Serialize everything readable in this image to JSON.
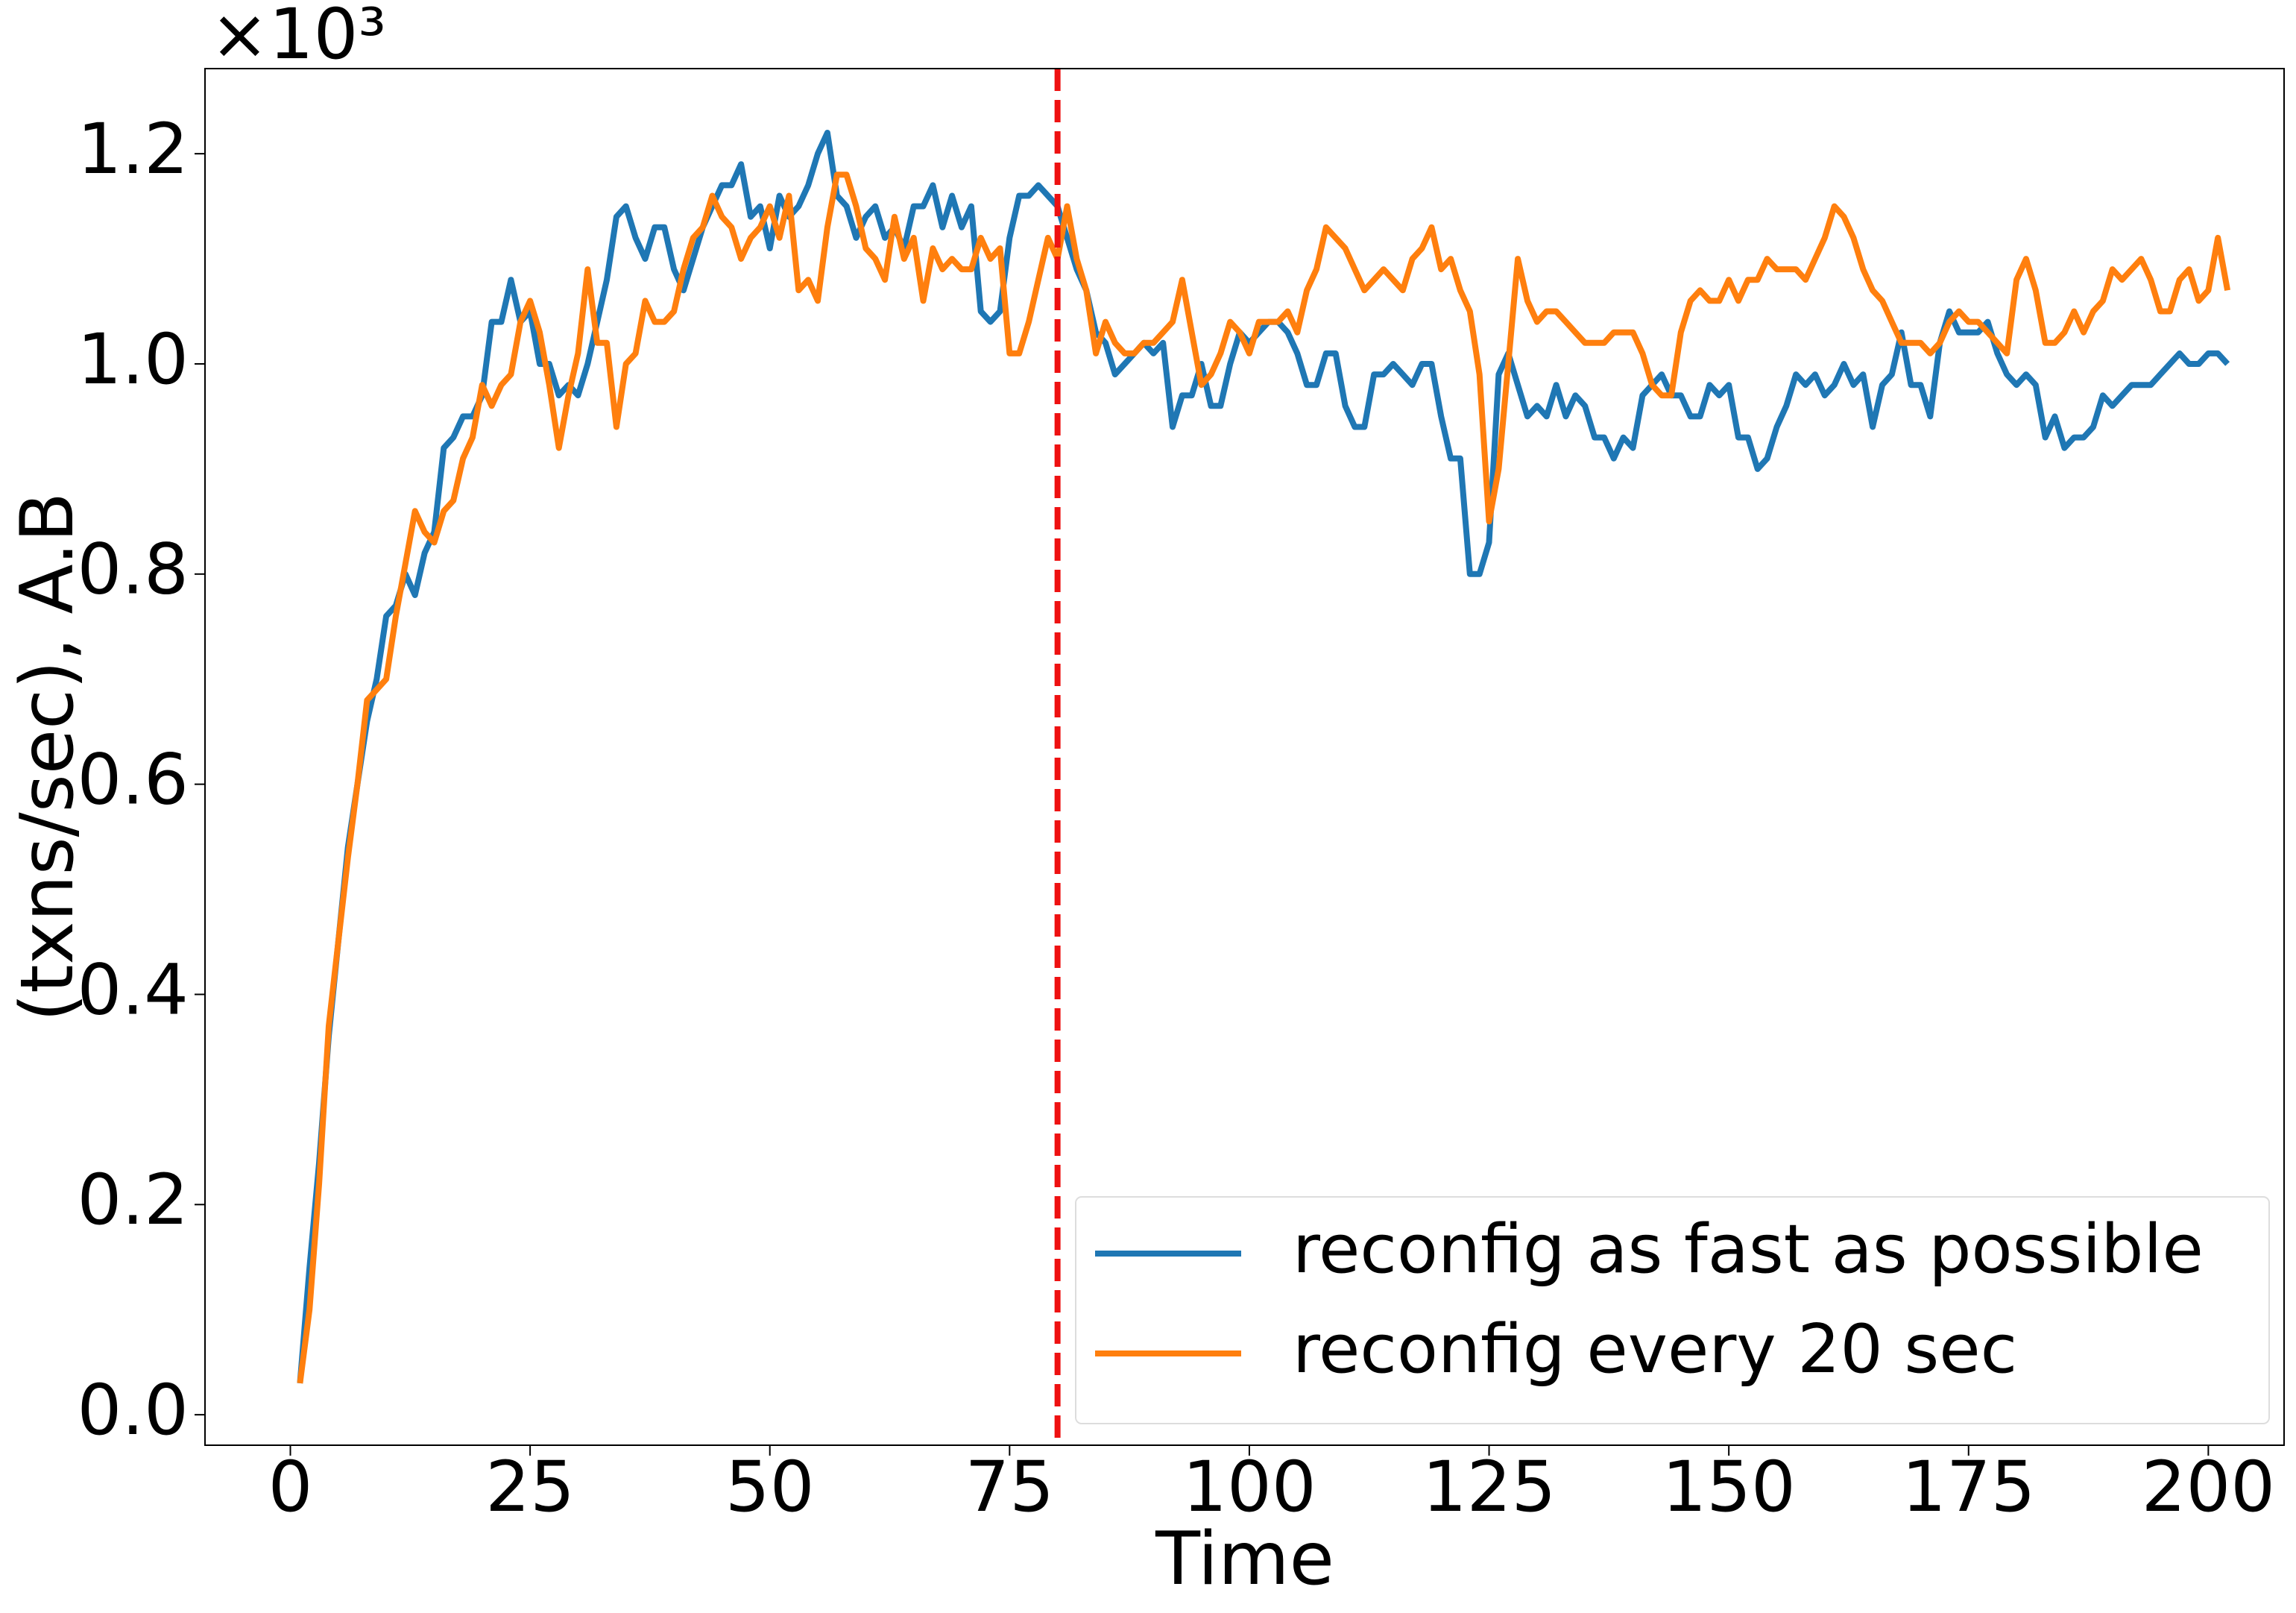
{
  "chart_data": {
    "type": "line",
    "x_label": "Time",
    "y_label": "(txns/sec), A.B",
    "y_offset_text": "×10³",
    "x": [
      1,
      2,
      3,
      4,
      5,
      6,
      7,
      8,
      9,
      10,
      11,
      12,
      13,
      14,
      15,
      16,
      17,
      18,
      19,
      20,
      21,
      22,
      23,
      24,
      25,
      26,
      27,
      28,
      29,
      30,
      31,
      32,
      33,
      34,
      35,
      36,
      37,
      38,
      39,
      40,
      41,
      42,
      43,
      44,
      45,
      46,
      47,
      48,
      49,
      50,
      51,
      52,
      53,
      54,
      55,
      56,
      57,
      58,
      59,
      60,
      61,
      62,
      63,
      64,
      65,
      66,
      67,
      68,
      69,
      70,
      71,
      72,
      73,
      74,
      75,
      76,
      77,
      78,
      79,
      80,
      81,
      82,
      83,
      84,
      85,
      86,
      87,
      88,
      89,
      90,
      91,
      92,
      93,
      94,
      95,
      96,
      97,
      98,
      99,
      100,
      101,
      102,
      103,
      104,
      105,
      106,
      107,
      108,
      109,
      110,
      111,
      112,
      113,
      114,
      115,
      116,
      117,
      118,
      119,
      120,
      121,
      122,
      123,
      124,
      125,
      126,
      127,
      128,
      129,
      130,
      131,
      132,
      133,
      134,
      135,
      136,
      137,
      138,
      139,
      140,
      141,
      142,
      143,
      144,
      145,
      146,
      147,
      148,
      149,
      150,
      151,
      152,
      153,
      154,
      155,
      156,
      157,
      158,
      159,
      160,
      161,
      162,
      163,
      164,
      165,
      166,
      167,
      168,
      169,
      170,
      171,
      172,
      173,
      174,
      175,
      176,
      177,
      178,
      179,
      180,
      181,
      182,
      183,
      184,
      185,
      186,
      187,
      188,
      189,
      190,
      191,
      192,
      193,
      194,
      195,
      196,
      197,
      198,
      199,
      200,
      201,
      202
    ],
    "series": [
      {
        "name": "reconfig as fast as possible",
        "color": "#1f77b4",
        "values": [
          0.03,
          0.14,
          0.24,
          0.36,
          0.45,
          0.54,
          0.6,
          0.66,
          0.7,
          0.76,
          0.77,
          0.8,
          0.78,
          0.82,
          0.84,
          0.92,
          0.93,
          0.95,
          0.95,
          0.97,
          1.04,
          1.04,
          1.08,
          1.04,
          1.05,
          1.0,
          1.0,
          0.97,
          0.98,
          0.97,
          1.0,
          1.04,
          1.08,
          1.14,
          1.15,
          1.12,
          1.1,
          1.13,
          1.13,
          1.09,
          1.07,
          1.1,
          1.13,
          1.15,
          1.17,
          1.17,
          1.19,
          1.14,
          1.15,
          1.11,
          1.16,
          1.14,
          1.15,
          1.17,
          1.2,
          1.22,
          1.16,
          1.15,
          1.12,
          1.14,
          1.15,
          1.12,
          1.13,
          1.11,
          1.15,
          1.15,
          1.17,
          1.13,
          1.16,
          1.13,
          1.15,
          1.05,
          1.04,
          1.05,
          1.12,
          1.16,
          1.16,
          1.17,
          1.16,
          1.15,
          1.12,
          1.09,
          1.07,
          1.03,
          1.02,
          0.99,
          1.0,
          1.01,
          1.02,
          1.01,
          1.02,
          0.94,
          0.97,
          0.97,
          1.0,
          0.96,
          0.96,
          1.0,
          1.03,
          1.02,
          1.03,
          1.04,
          1.04,
          1.03,
          1.01,
          0.98,
          0.98,
          1.01,
          1.01,
          0.96,
          0.94,
          0.94,
          0.99,
          0.99,
          1.0,
          0.99,
          0.98,
          1.0,
          1.0,
          0.95,
          0.91,
          0.91,
          0.8,
          0.8,
          0.83,
          0.99,
          1.01,
          0.98,
          0.95,
          0.96,
          0.95,
          0.98,
          0.95,
          0.97,
          0.96,
          0.93,
          0.93,
          0.91,
          0.93,
          0.92,
          0.97,
          0.98,
          0.99,
          0.97,
          0.97,
          0.95,
          0.95,
          0.98,
          0.97,
          0.98,
          0.93,
          0.93,
          0.9,
          0.91,
          0.94,
          0.96,
          0.99,
          0.98,
          0.99,
          0.97,
          0.98,
          1.0,
          0.98,
          0.99,
          0.94,
          0.98,
          0.99,
          1.03,
          0.98,
          0.98,
          0.95,
          1.02,
          1.05,
          1.03,
          1.03,
          1.03,
          1.04,
          1.01,
          0.99,
          0.98,
          0.99,
          0.98,
          0.93,
          0.95,
          0.92,
          0.93,
          0.93,
          0.94,
          0.97,
          0.96,
          0.97,
          0.98,
          0.98,
          0.98,
          0.99,
          1.0,
          1.01,
          1.0,
          1.0,
          1.01,
          1.01,
          1.0
        ]
      },
      {
        "name": "reconfig every 20 sec",
        "color": "#ff7f0e",
        "values": [
          0.03,
          0.1,
          0.22,
          0.37,
          0.45,
          0.53,
          0.6,
          0.68,
          0.69,
          0.7,
          0.76,
          0.81,
          0.86,
          0.84,
          0.83,
          0.86,
          0.87,
          0.91,
          0.93,
          0.98,
          0.96,
          0.98,
          0.99,
          1.04,
          1.06,
          1.03,
          0.98,
          0.92,
          0.97,
          1.01,
          1.09,
          1.02,
          1.02,
          0.94,
          1.0,
          1.01,
          1.06,
          1.04,
          1.04,
          1.05,
          1.09,
          1.12,
          1.13,
          1.16,
          1.14,
          1.13,
          1.1,
          1.12,
          1.13,
          1.15,
          1.12,
          1.16,
          1.07,
          1.08,
          1.06,
          1.13,
          1.18,
          1.18,
          1.15,
          1.11,
          1.1,
          1.08,
          1.14,
          1.1,
          1.12,
          1.06,
          1.11,
          1.09,
          1.1,
          1.09,
          1.09,
          1.12,
          1.1,
          1.11,
          1.01,
          1.01,
          1.04,
          1.08,
          1.12,
          1.1,
          1.15,
          1.1,
          1.07,
          1.01,
          1.04,
          1.02,
          1.01,
          1.01,
          1.02,
          1.02,
          1.03,
          1.04,
          1.08,
          1.03,
          0.98,
          0.99,
          1.01,
          1.04,
          1.03,
          1.01,
          1.04,
          1.04,
          1.04,
          1.05,
          1.03,
          1.07,
          1.09,
          1.13,
          1.12,
          1.11,
          1.09,
          1.07,
          1.08,
          1.09,
          1.08,
          1.07,
          1.1,
          1.11,
          1.13,
          1.09,
          1.1,
          1.07,
          1.05,
          0.99,
          0.85,
          0.9,
          1.0,
          1.1,
          1.06,
          1.04,
          1.05,
          1.05,
          1.04,
          1.03,
          1.02,
          1.02,
          1.02,
          1.03,
          1.03,
          1.03,
          1.01,
          0.98,
          0.97,
          0.97,
          1.03,
          1.06,
          1.07,
          1.06,
          1.06,
          1.08,
          1.06,
          1.08,
          1.08,
          1.1,
          1.09,
          1.09,
          1.09,
          1.08,
          1.1,
          1.12,
          1.15,
          1.14,
          1.12,
          1.09,
          1.07,
          1.06,
          1.04,
          1.02,
          1.02,
          1.02,
          1.01,
          1.02,
          1.04,
          1.05,
          1.04,
          1.04,
          1.03,
          1.02,
          1.01,
          1.08,
          1.1,
          1.07,
          1.02,
          1.02,
          1.03,
          1.05,
          1.03,
          1.05,
          1.06,
          1.09,
          1.08,
          1.09,
          1.1,
          1.08,
          1.05,
          1.05,
          1.08,
          1.09,
          1.06,
          1.07,
          1.12,
          1.07
        ]
      }
    ],
    "vline": {
      "x": 80,
      "color": "#ee1111"
    },
    "xlim": [
      -8.9,
      207.9
    ],
    "xticks": [
      0,
      25,
      50,
      75,
      100,
      125,
      150,
      175,
      200
    ],
    "ylim": [
      -0.029,
      1.281
    ],
    "yticks": [
      {
        "value": 0,
        "label": "0.0"
      },
      0.2,
      0.4,
      0.6,
      0.8,
      {
        "value": 1,
        "label": "1.0"
      },
      1.2
    ],
    "legend": "lower right"
  }
}
